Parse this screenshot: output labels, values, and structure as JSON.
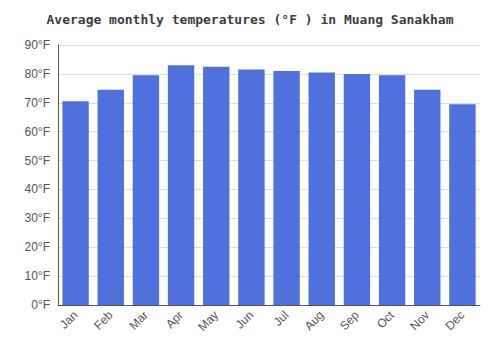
{
  "chart_data": {
    "type": "bar",
    "title": "Average monthly temperatures (°F ) in Muang Sanakham",
    "categories": [
      "Jan",
      "Feb",
      "Mar",
      "Apr",
      "May",
      "Jun",
      "Jul",
      "Aug",
      "Sep",
      "Oct",
      "Nov",
      "Dec"
    ],
    "values": [
      70.5,
      74.5,
      79.5,
      83.0,
      82.5,
      81.5,
      81.0,
      80.5,
      80.0,
      79.5,
      74.5,
      69.5
    ],
    "ylim": [
      0,
      90
    ],
    "yticks": [
      {
        "value": 0,
        "label": "0°F"
      },
      {
        "value": 10,
        "label": "10°F"
      },
      {
        "value": 20,
        "label": "20°F"
      },
      {
        "value": 30,
        "label": "30°F"
      },
      {
        "value": 40,
        "label": "40°F"
      },
      {
        "value": 50,
        "label": "50°F"
      },
      {
        "value": 60,
        "label": "60°F"
      },
      {
        "value": 70,
        "label": "70°F"
      },
      {
        "value": 80,
        "label": "80°F"
      },
      {
        "value": 90,
        "label": "90°F"
      }
    ],
    "grid": true
  }
}
